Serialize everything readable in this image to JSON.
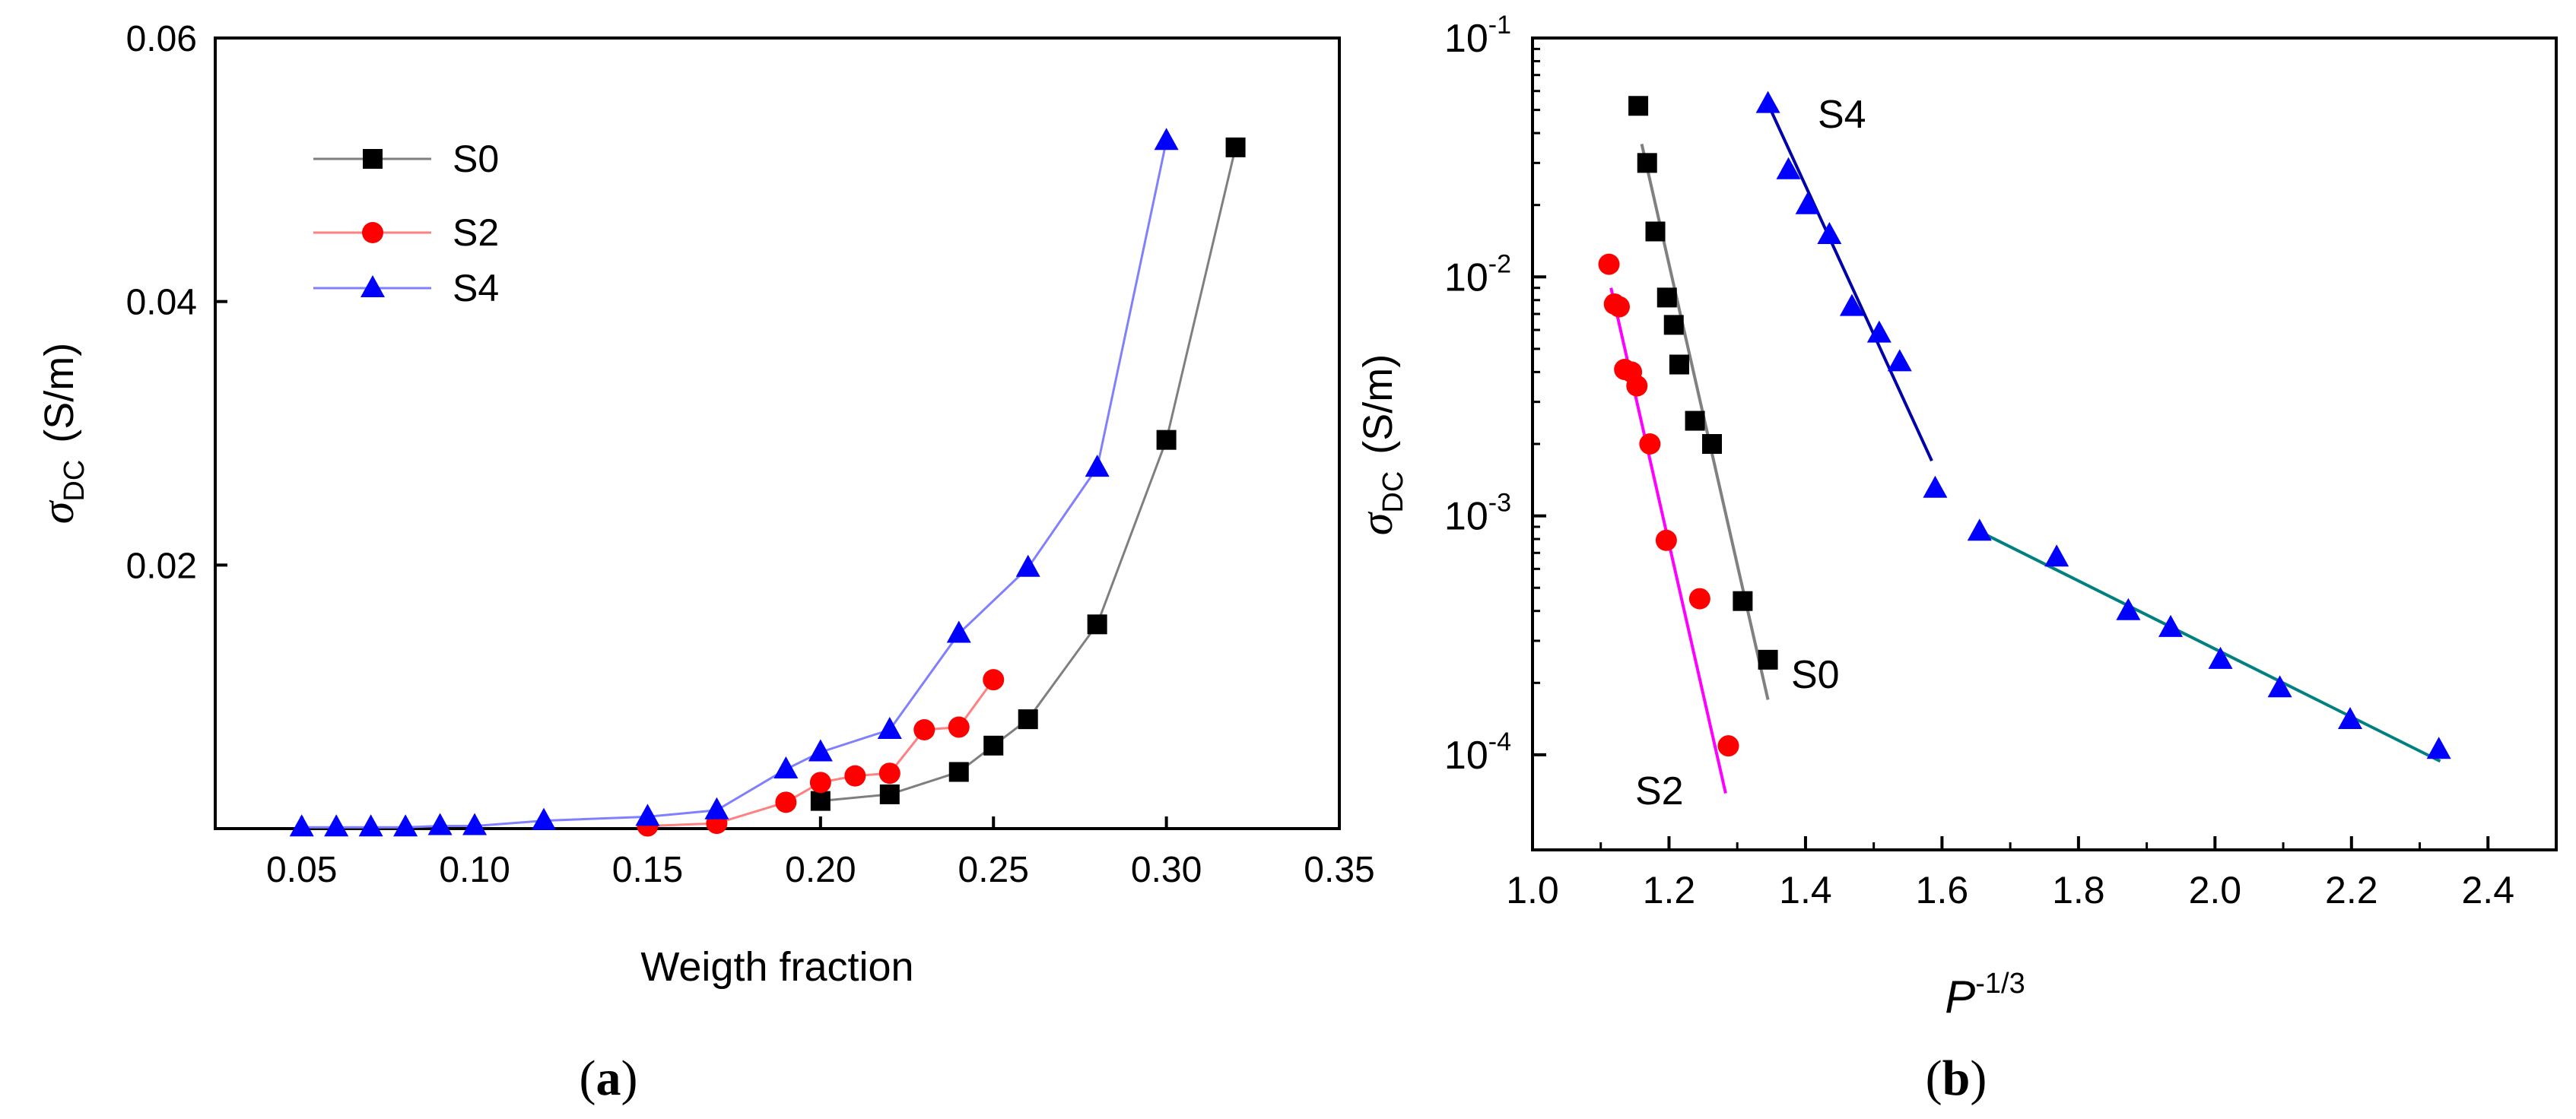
{
  "chart_data": [
    {
      "type": "line",
      "panel_label": "(a)",
      "panel_label_parts": [
        "(",
        "a",
        ")"
      ],
      "xlabel": "Weigth fraction",
      "ylabel_symbol": "σ",
      "ylabel_subscript": "DC",
      "ylabel_unit": "(S/m)",
      "xlim": [
        0.025,
        0.35
      ],
      "ylim": [
        0.0,
        0.06
      ],
      "xticks": [
        0.05,
        0.1,
        0.15,
        0.2,
        0.25,
        0.3,
        0.35
      ],
      "xtick_labels": [
        "0.05",
        "0.10",
        "0.15",
        "0.20",
        "0.25",
        "0.30",
        "0.35"
      ],
      "yticks": [
        0.02,
        0.04,
        0.06
      ],
      "ytick_labels": [
        "0.02",
        "0.04",
        "0.06"
      ],
      "legend_position": "top-left",
      "series": [
        {
          "name": "S0",
          "marker": "square",
          "color": "#000000",
          "line_color": "#7f7f7f",
          "x": [
            0.2,
            0.22,
            0.24,
            0.25,
            0.26,
            0.28,
            0.3,
            0.32
          ],
          "y": [
            0.0021,
            0.0026,
            0.0043,
            0.0063,
            0.0083,
            0.0155,
            0.0295,
            0.0517
          ]
        },
        {
          "name": "S2",
          "marker": "circle",
          "color": "#ff0000",
          "line_color": "#ff8080",
          "x": [
            0.15,
            0.17,
            0.19,
            0.2,
            0.21,
            0.22,
            0.23,
            0.24,
            0.25
          ],
          "y": [
            0.0002,
            0.0004,
            0.002,
            0.0035,
            0.004,
            0.0042,
            0.0075,
            0.0077,
            0.0113
          ]
        },
        {
          "name": "S4",
          "marker": "triangle",
          "color": "#0000ff",
          "line_color": "#8080ff",
          "x": [
            0.05,
            0.06,
            0.07,
            0.08,
            0.09,
            0.1,
            0.12,
            0.15,
            0.17,
            0.19,
            0.2,
            0.22,
            0.24,
            0.26,
            0.28,
            0.3
          ],
          "y": [
            0.0001,
            0.0001,
            0.0001,
            0.0001,
            0.0002,
            0.0002,
            0.0006,
            0.0009,
            0.0014,
            0.0045,
            0.0058,
            0.0075,
            0.0148,
            0.0198,
            0.0274,
            0.0522
          ]
        }
      ]
    },
    {
      "type": "scatter",
      "panel_label": "(b)",
      "panel_label_parts": [
        "(",
        "b",
        ")"
      ],
      "xlabel_symbol": "P",
      "xlabel_superscript": "-1/3",
      "ylabel_symbol": "σ",
      "ylabel_subscript": "DC",
      "ylabel_unit": "(S/m)",
      "y_scale": "log",
      "xlim": [
        1.0,
        2.5
      ],
      "ylim": [
        4e-05,
        0.1
      ],
      "xticks": [
        1.0,
        1.2,
        1.4,
        1.6,
        1.8,
        2.0,
        2.2,
        2.4
      ],
      "xtick_labels": [
        "1.0",
        "1.2",
        "1.4",
        "1.6",
        "1.8",
        "2.0",
        "2.2",
        "2.4"
      ],
      "yticks": [
        0.0001,
        0.001,
        0.01,
        0.1
      ],
      "ytick_bases": [
        "10",
        "10",
        "10",
        "10"
      ],
      "ytick_exponents": [
        "-4",
        "-3",
        "-2",
        "-1"
      ],
      "series": [
        {
          "name": "S0",
          "marker": "square",
          "color": "#000000",
          "x": [
            1.155,
            1.168,
            1.18,
            1.197,
            1.207,
            1.215,
            1.238,
            1.263,
            1.308,
            1.345
          ],
          "y": [
            0.052,
            0.03,
            0.0155,
            0.0082,
            0.0063,
            0.0043,
            0.0025,
            0.002,
            0.00044,
            0.00025
          ],
          "fit_line": {
            "color": "#808080",
            "x": [
              1.16,
              1.345
            ],
            "y": [
              0.036,
              0.00017
            ]
          }
        },
        {
          "name": "S2",
          "marker": "circle",
          "color": "#ff0000",
          "x": [
            1.112,
            1.12,
            1.127,
            1.135,
            1.145,
            1.153,
            1.172,
            1.196,
            1.245,
            1.287
          ],
          "y": [
            0.0113,
            0.0077,
            0.0075,
            0.0041,
            0.004,
            0.0035,
            0.002,
            0.00079,
            0.00045,
            0.000109
          ],
          "fit_line": {
            "color": "#ff00ff",
            "x": [
              1.115,
              1.283
            ],
            "y": [
              0.009,
              6.9e-05
            ]
          }
        },
        {
          "name": "S4",
          "marker": "triangle",
          "color": "#0000ff",
          "x": [
            1.345,
            1.375,
            1.403,
            1.435,
            1.468,
            1.508,
            1.538,
            1.59,
            1.655,
            1.768,
            1.873,
            1.935,
            2.008,
            2.095,
            2.198,
            2.328
          ],
          "y": [
            0.053,
            0.028,
            0.02,
            0.015,
            0.0075,
            0.0058,
            0.0044,
            0.0013,
            0.00086,
            0.00067,
            0.0004,
            0.00034,
            0.00025,
            0.00019,
            0.00014,
            0.000105
          ],
          "fit_lines": [
            {
              "color": "#0000aa",
              "x": [
                1.345,
                1.585
              ],
              "y": [
                0.053,
                0.0017
              ]
            },
            {
              "color": "#008080",
              "x": [
                1.655,
                2.33
              ],
              "y": [
                0.00086,
                9.4e-05
              ]
            }
          ]
        }
      ]
    }
  ]
}
